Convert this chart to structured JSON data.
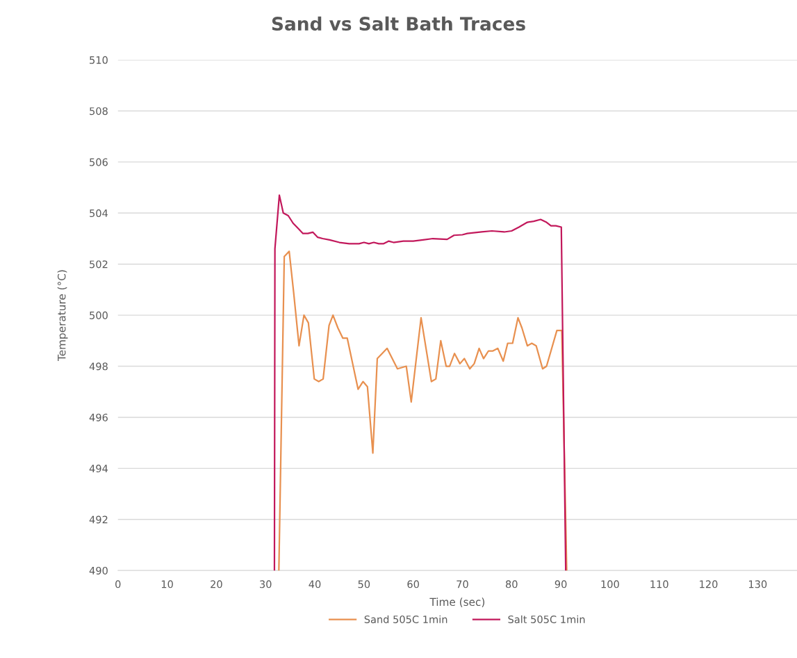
{
  "chart_data": {
    "type": "line",
    "title": "Sand vs Salt Bath Traces",
    "xlabel": "Time (sec)",
    "ylabel": "Temperature (°C)",
    "xlim": [
      0,
      138
    ],
    "xticks": [
      0,
      10,
      20,
      30,
      40,
      50,
      60,
      70,
      80,
      90,
      100,
      110,
      120,
      130
    ],
    "ylim": [
      490,
      510
    ],
    "yticks": [
      490,
      492,
      494,
      496,
      498,
      500,
      502,
      504,
      506,
      508,
      510
    ],
    "grid": "y",
    "legend": "bottom",
    "marker": "none",
    "line_style": "solid",
    "series": [
      {
        "name": "Sand 505C 1min",
        "color": "#e8904f",
        "x": [
          32.7,
          33.8,
          34.8,
          35.7,
          36.8,
          37.8,
          38.7,
          39.9,
          40.8,
          41.7,
          42.9,
          43.7,
          44.7,
          45.7,
          46.6,
          47.7,
          48.8,
          49.8,
          50.7,
          51.8,
          52.7,
          54.7,
          56.8,
          58.6,
          59.6,
          61.6,
          63.7,
          64.6,
          65.6,
          66.7,
          67.4,
          68.4,
          69.5,
          70.4,
          71.5,
          72.4,
          73.4,
          74.3,
          75.3,
          76.2,
          77.2,
          78.3,
          79.2,
          80.2,
          81.3,
          82.1,
          83.2,
          84.1,
          85.0,
          86.3,
          87.1,
          89.2,
          90.2,
          91.2
        ],
        "values": [
          490,
          502.3,
          502.5,
          500.9,
          498.8,
          500.0,
          499.7,
          497.5,
          497.4,
          497.5,
          499.6,
          500.0,
          499.5,
          499.1,
          499.1,
          498.1,
          497.1,
          497.4,
          497.2,
          494.6,
          498.3,
          498.7,
          497.9,
          498.0,
          496.6,
          499.9,
          497.4,
          497.5,
          499.0,
          498.0,
          498.0,
          498.5,
          498.1,
          498.3,
          497.9,
          498.1,
          498.7,
          498.3,
          498.6,
          498.6,
          498.7,
          498.2,
          498.9,
          498.9,
          499.9,
          499.5,
          498.8,
          498.9,
          498.8,
          497.9,
          498.0,
          499.4,
          499.4,
          490
        ]
      },
      {
        "name": "Salt 505C 1min",
        "color": "#c2185b",
        "x": [
          31.8,
          31.9,
          32.8,
          33.6,
          34.6,
          35.6,
          36.6,
          37.6,
          38.6,
          39.6,
          40.6,
          41.6,
          43,
          45,
          47,
          49,
          50,
          51,
          52,
          53,
          54,
          55,
          56,
          58,
          60,
          62,
          64,
          66.9,
          68.3,
          70,
          71,
          73.9,
          76,
          78.5,
          80,
          81.5,
          83.2,
          84.5,
          85.9,
          87,
          88,
          89,
          90.1,
          91.0
        ],
        "values": [
          490,
          502.6,
          504.7,
          504.0,
          503.9,
          503.6,
          503.4,
          503.2,
          503.2,
          503.25,
          503.05,
          503.0,
          502.95,
          502.85,
          502.8,
          502.8,
          502.85,
          502.8,
          502.85,
          502.8,
          502.8,
          502.9,
          502.85,
          502.9,
          502.9,
          502.95,
          503.0,
          502.97,
          503.13,
          503.15,
          503.2,
          503.26,
          503.3,
          503.26,
          503.3,
          503.45,
          503.64,
          503.68,
          503.75,
          503.65,
          503.5,
          503.5,
          503.45,
          490
        ]
      }
    ]
  }
}
